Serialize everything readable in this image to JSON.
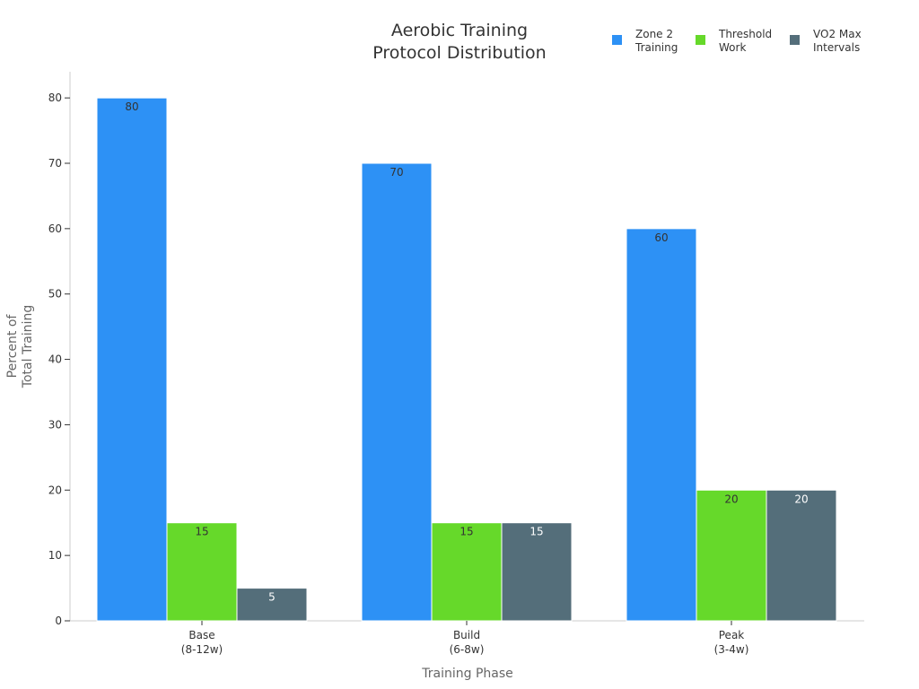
{
  "chart_data": {
    "type": "bar",
    "title": [
      "Aerobic Training",
      "Protocol Distribution"
    ],
    "xlabel": "Training Phase",
    "ylabel": [
      "Percent of",
      "Total Training"
    ],
    "categories": [
      [
        "Base",
        "(8-12w)"
      ],
      [
        "Build",
        "(6-8w)"
      ],
      [
        "Peak",
        "(3-4w)"
      ]
    ],
    "series": [
      {
        "name": [
          "Zone 2",
          "Training"
        ],
        "values": [
          80,
          70,
          60
        ],
        "color": "#2d91f5",
        "label_color": "#333333"
      },
      {
        "name": [
          "Threshold",
          "Work"
        ],
        "values": [
          15,
          15,
          20
        ],
        "color": "#66d92a",
        "label_color": "#333333"
      },
      {
        "name": [
          "VO2 Max",
          "Intervals"
        ],
        "values": [
          5,
          15,
          20
        ],
        "color": "#546e7a",
        "label_color": "#ffffff"
      }
    ],
    "ylim": [
      0,
      84
    ],
    "yticks": [
      0,
      10,
      20,
      30,
      40,
      50,
      60,
      70,
      80
    ],
    "grid": false,
    "legend": "top-right"
  }
}
